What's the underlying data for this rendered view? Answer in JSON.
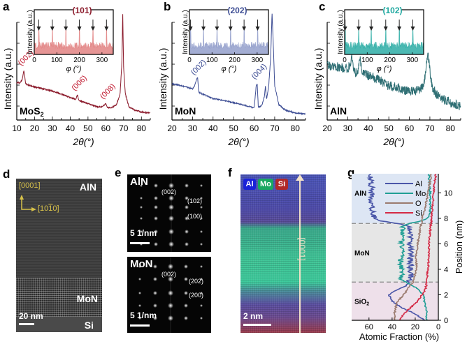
{
  "chart_data": [
    {
      "panel": "a",
      "type": "line",
      "xlabel": "2θ(°)",
      "ylabel": "Intensity (a.u.)",
      "xlim": [
        10,
        85
      ],
      "xticks": [
        10,
        20,
        30,
        40,
        50,
        60,
        70,
        80
      ],
      "color": "#8b1a2b",
      "sample_label": "MoS2",
      "series": [
        {
          "name": "MoS2",
          "x": [
            10,
            12,
            13,
            14,
            15,
            16,
            20,
            30,
            40,
            43,
            44,
            45,
            50,
            55,
            58,
            60,
            61,
            63,
            66,
            68,
            69,
            69.5,
            70,
            71,
            73,
            76,
            80,
            85
          ],
          "y": [
            0.33,
            0.33,
            0.36,
            0.45,
            0.32,
            0.31,
            0.29,
            0.25,
            0.19,
            0.17,
            0.21,
            0.16,
            0.13,
            0.1,
            0.1,
            0.13,
            0.09,
            0.09,
            0.12,
            0.22,
            0.5,
            1.0,
            0.48,
            0.22,
            0.1,
            0.07,
            0.05,
            0.04
          ]
        }
      ],
      "peak_labels": [
        {
          "text": "(002)",
          "x": 14
        },
        {
          "text": "(006)",
          "x": 44
        },
        {
          "text": "(008)",
          "x": 60
        }
      ],
      "inset": {
        "title": "(101)",
        "xlabel": "φ (°)",
        "ylabel": "Intensity (a.u.)",
        "xlim": [
          0,
          350
        ],
        "xticks": [
          0,
          100,
          200,
          300
        ],
        "fill_color": "#e07a7a",
        "peaks": [
          20,
          80,
          140,
          200,
          260,
          320
        ]
      }
    },
    {
      "panel": "b",
      "type": "line",
      "xlabel": "2θ(°)",
      "ylabel": "Intensity (a.u.)",
      "xlim": [
        20,
        85
      ],
      "xticks": [
        20,
        30,
        40,
        50,
        60,
        70,
        80
      ],
      "color": "#3d4d94",
      "sample_label": "MoN",
      "series": [
        {
          "name": "MoN",
          "x": [
            20,
            25,
            30,
            31,
            32,
            32.5,
            33,
            35,
            40,
            50,
            58,
            60,
            61,
            61.5,
            62,
            63,
            64,
            65,
            65.5,
            66,
            67,
            68,
            68.7,
            69.5,
            70,
            72,
            75,
            80,
            85
          ],
          "y": [
            0.32,
            0.3,
            0.27,
            0.3,
            0.36,
            0.38,
            0.24,
            0.22,
            0.18,
            0.14,
            0.1,
            0.09,
            0.3,
            0.32,
            0.1,
            0.1,
            0.13,
            0.2,
            0.3,
            0.17,
            0.28,
            0.55,
            1.0,
            0.6,
            0.3,
            0.12,
            0.07,
            0.04,
            0.03
          ]
        }
      ],
      "peak_labels": [
        {
          "text": "(002)",
          "x": 32
        },
        {
          "text": "(004)",
          "x": 61.5
        }
      ],
      "inset": {
        "title": "(202)",
        "xlabel": "φ (°)",
        "ylabel": "Intensity (a.u.)",
        "xlim": [
          0,
          350
        ],
        "xticks": [
          0,
          100,
          200,
          300
        ],
        "fill_color": "#8c98c8",
        "peaks": [
          5,
          62,
          122,
          182,
          242,
          302
        ]
      }
    },
    {
      "panel": "c",
      "type": "line",
      "xlabel": "2θ(°)",
      "ylabel": "Intensity (a.u.)",
      "xlim": [
        20,
        85
      ],
      "xticks": [
        20,
        30,
        40,
        50,
        60,
        70,
        80
      ],
      "color": "#2f6f74",
      "sample_label": "AlN",
      "series": [
        {
          "name": "AlN",
          "x": [
            20,
            25,
            30,
            31,
            32,
            33,
            34,
            35,
            36,
            37,
            40,
            45,
            50,
            55,
            60,
            65,
            67,
            68,
            69,
            70,
            71,
            73,
            76,
            80,
            85
          ],
          "y": [
            0.5,
            0.48,
            0.46,
            0.5,
            0.56,
            0.44,
            0.42,
            0.46,
            0.57,
            0.43,
            0.4,
            0.36,
            0.3,
            0.28,
            0.24,
            0.26,
            0.32,
            0.45,
            0.62,
            0.45,
            0.3,
            0.22,
            0.18,
            0.14,
            0.1
          ]
        }
      ],
      "peak_labels": [
        {
          "text": "MoN",
          "x": 32
        },
        {
          "text": "(002)",
          "x": 36
        }
      ],
      "inset": {
        "title": "(102)",
        "xlabel": "φ (°)",
        "ylabel": "Intensity (a.u.)",
        "xlim": [
          0,
          350
        ],
        "xticks": [
          0,
          100,
          200,
          300
        ],
        "fill_color": "#1fa8a0",
        "peaks": [
          2,
          62,
          118,
          182,
          242,
          302
        ]
      }
    },
    {
      "panel": "g",
      "type": "line",
      "xlabel": "Atomic Fraction (%)",
      "ylabel": "Position (nm)",
      "xlim": [
        75,
        0
      ],
      "ylim": [
        0,
        11.5
      ],
      "xticks": [
        60,
        40,
        20,
        0
      ],
      "yticks": [
        0,
        2,
        4,
        6,
        8,
        10
      ],
      "legend": "top-right",
      "regions": [
        {
          "label": "AlN",
          "from": 7.6,
          "to": 11.5,
          "color": "#dde6f4"
        },
        {
          "label": "MoN",
          "from": 3.0,
          "to": 7.6,
          "color": "#e6e6e6"
        },
        {
          "label": "SiO2",
          "from": 0,
          "to": 3.0,
          "color": "#eee0ea"
        }
      ],
      "boundaries": [
        7.6,
        3.0
      ],
      "series": [
        {
          "name": "Al",
          "color": "#4a56a8",
          "y": [
            0,
            0.5,
            1,
            1.5,
            2,
            2.3,
            2.7,
            3.0,
            3.5,
            4,
            5,
            6,
            7,
            7.4,
            7.6,
            7.8,
            8,
            8.5,
            9,
            10,
            11,
            11.5
          ],
          "x": [
            12,
            20,
            32,
            40,
            43,
            38,
            28,
            25,
            24,
            24,
            24,
            24,
            24,
            26,
            35,
            50,
            55,
            57,
            58,
            58,
            58,
            58
          ]
        },
        {
          "name": "Mo",
          "color": "#1f9e94",
          "y": [
            0,
            0.5,
            1,
            1.5,
            2,
            2.5,
            3.0,
            3.2,
            4,
            5,
            6,
            7,
            7.4,
            7.6,
            7.8,
            8,
            8.5,
            9,
            10,
            11,
            11.5
          ],
          "x": [
            10,
            10,
            11,
            12,
            13,
            18,
            28,
            32,
            32,
            32,
            32,
            31,
            30,
            25,
            15,
            9,
            7,
            7,
            7,
            8,
            8
          ]
        },
        {
          "name": "O",
          "color": "#9a7a6e",
          "y": [
            0,
            0.5,
            1,
            1.5,
            2,
            2.5,
            3,
            4,
            5,
            6,
            7,
            8,
            9,
            10,
            11,
            11.5
          ],
          "x": [
            38,
            38,
            37,
            35,
            30,
            26,
            22,
            19,
            19,
            18,
            16,
            14,
            11,
            9,
            7,
            6
          ]
        },
        {
          "name": "Si",
          "color": "#d42a45",
          "y": [
            0,
            0.5,
            1,
            1.5,
            2,
            2.5,
            3,
            4,
            5,
            6,
            7,
            8,
            9,
            10,
            11,
            11.5
          ],
          "x": [
            34,
            30,
            24,
            18,
            14,
            11,
            10,
            9,
            8,
            8,
            7,
            6,
            5,
            4,
            3,
            2
          ]
        }
      ]
    }
  ],
  "panels": {
    "a": {
      "label": "a"
    },
    "b": {
      "label": "b"
    },
    "c": {
      "label": "c"
    },
    "d": {
      "label": "d",
      "dir_up": "[0001]",
      "dir_right": "[10",
      "dir_right_bar": "1",
      "dir_right_end": "0]",
      "layer_top": "AlN",
      "layer_mid": "MoN",
      "layer_bottom": "Si",
      "scale": "20 nm"
    },
    "e": {
      "label": "e",
      "top": {
        "title": "AlN",
        "spots": [
          "(002)",
          "(102)",
          "(100)"
        ],
        "scale": "5 1/nm"
      },
      "bottom": {
        "title": "MoN",
        "spots": [
          "(002)",
          "(202)",
          "(200)"
        ],
        "scale": "5 1/nm"
      }
    },
    "f": {
      "label": "f",
      "legend": [
        {
          "text": "Al",
          "color": "#1a22d8"
        },
        {
          "text": "Mo",
          "color": "#18a860"
        },
        {
          "text": "Si",
          "color": "#b02828"
        }
      ],
      "axis": "[0001]",
      "scale": "2 nm"
    },
    "g": {
      "label": "g",
      "sio2": "SiO",
      "sio2_sub": "2"
    }
  },
  "sublabels": {
    "a_sample": "MoS",
    "a_sample_sub": "2"
  }
}
